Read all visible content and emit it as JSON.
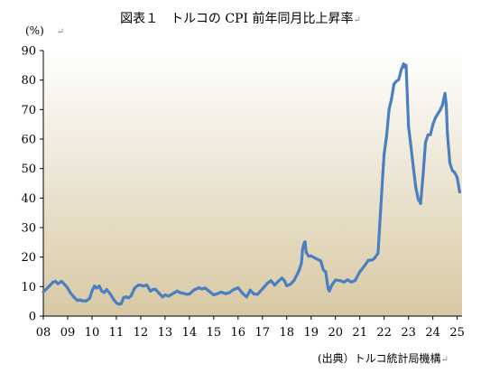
{
  "title": "図表１　トルコの CPI 前年同月比上昇率",
  "unit_label": "(%)",
  "source_label": "(出典）トルコ統計局機構",
  "return_mark": "↵",
  "colors": {
    "line": "#4a7fc1",
    "plot_top": "#ffffff",
    "plot_bottom": "#d8c9a4"
  },
  "chart_data": {
    "type": "line",
    "title": "図表１　トルコの CPI 前年同月比上昇率",
    "xlabel": "",
    "ylabel": "(%)",
    "ylim": [
      0,
      90
    ],
    "yticks": [
      0,
      10,
      20,
      30,
      40,
      50,
      60,
      70,
      80,
      90
    ],
    "xlim": [
      2008,
      2025.2
    ],
    "xticks": [
      {
        "pos": 2008,
        "label": "08"
      },
      {
        "pos": 2009,
        "label": "09"
      },
      {
        "pos": 2010,
        "label": "10"
      },
      {
        "pos": 2011,
        "label": "11"
      },
      {
        "pos": 2012,
        "label": "12"
      },
      {
        "pos": 2013,
        "label": "13"
      },
      {
        "pos": 2014,
        "label": "14"
      },
      {
        "pos": 2015,
        "label": "15"
      },
      {
        "pos": 2016,
        "label": "16"
      },
      {
        "pos": 2017,
        "label": "17"
      },
      {
        "pos": 2018,
        "label": "18"
      },
      {
        "pos": 2019,
        "label": "19"
      },
      {
        "pos": 2020,
        "label": "20"
      },
      {
        "pos": 2021,
        "label": "21"
      },
      {
        "pos": 2022,
        "label": "22"
      },
      {
        "pos": 2023,
        "label": "23"
      },
      {
        "pos": 2024,
        "label": "24"
      },
      {
        "pos": 2025,
        "label": "25"
      }
    ],
    "grid": false,
    "series": [
      {
        "name": "",
        "x": [
          2008.0,
          2008.1,
          2008.25,
          2008.4,
          2008.5,
          2008.6,
          2008.75,
          2008.9,
          2009.0,
          2009.1,
          2009.25,
          2009.4,
          2009.5,
          2009.6,
          2009.75,
          2009.9,
          2010.0,
          2010.1,
          2010.2,
          2010.3,
          2010.4,
          2010.5,
          2010.6,
          2010.75,
          2010.9,
          2011.0,
          2011.1,
          2011.2,
          2011.3,
          2011.4,
          2011.5,
          2011.6,
          2011.75,
          2011.9,
          2012.0,
          2012.1,
          2012.25,
          2012.4,
          2012.5,
          2012.6,
          2012.75,
          2012.9,
          2013.0,
          2013.15,
          2013.3,
          2013.5,
          2013.6,
          2013.75,
          2013.9,
          2014.0,
          2014.2,
          2014.4,
          2014.5,
          2014.65,
          2014.8,
          2015.0,
          2015.15,
          2015.3,
          2015.5,
          2015.65,
          2015.8,
          2016.0,
          2016.2,
          2016.35,
          2016.5,
          2016.65,
          2016.8,
          2017.0,
          2017.2,
          2017.35,
          2017.5,
          2017.65,
          2017.8,
          2017.9,
          2018.0,
          2018.15,
          2018.3,
          2018.5,
          2018.6,
          2018.65,
          2018.7,
          2018.75,
          2018.8,
          2018.9,
          2019.0,
          2019.2,
          2019.4,
          2019.5,
          2019.6,
          2019.7,
          2019.75,
          2019.85,
          2020.0,
          2020.2,
          2020.35,
          2020.5,
          2020.65,
          2020.8,
          2021.0,
          2021.2,
          2021.35,
          2021.5,
          2021.6,
          2021.75,
          2021.85,
          2021.95,
          2022.0,
          2022.1,
          2022.2,
          2022.3,
          2022.4,
          2022.5,
          2022.6,
          2022.7,
          2022.8,
          2022.85,
          2022.9,
          2023.0,
          2023.1,
          2023.2,
          2023.3,
          2023.4,
          2023.5,
          2023.6,
          2023.7,
          2023.8,
          2023.9,
          2024.0,
          2024.1,
          2024.2,
          2024.3,
          2024.4,
          2024.5,
          2024.55,
          2024.6,
          2024.7,
          2024.8,
          2024.9,
          2025.0,
          2025.1
        ],
        "values": [
          8.2,
          9.0,
          10.2,
          11.5,
          11.8,
          11.0,
          11.8,
          10.5,
          9.5,
          8.0,
          6.5,
          5.3,
          5.5,
          5.2,
          5.1,
          6.0,
          8.5,
          10.2,
          9.5,
          10.2,
          8.5,
          8.0,
          9.0,
          7.5,
          5.5,
          4.5,
          4.0,
          4.2,
          6.3,
          6.5,
          6.2,
          6.8,
          9.5,
          10.5,
          10.5,
          10.2,
          10.5,
          8.5,
          9.0,
          9.1,
          7.8,
          6.5,
          7.2,
          6.8,
          7.5,
          8.5,
          8.0,
          7.7,
          7.4,
          7.5,
          8.9,
          9.6,
          9.2,
          9.5,
          8.5,
          7.2,
          7.6,
          8.1,
          7.6,
          8.0,
          8.9,
          9.6,
          7.6,
          6.5,
          8.8,
          7.5,
          7.4,
          9.2,
          11.1,
          12.0,
          10.5,
          11.8,
          12.9,
          12.0,
          10.3,
          10.8,
          12.1,
          15.4,
          17.9,
          22.5,
          24.5,
          25.2,
          21.6,
          20.3,
          20.4,
          19.5,
          18.7,
          15.7,
          15.0,
          9.3,
          8.5,
          10.5,
          12.2,
          12.0,
          11.5,
          12.3,
          11.5,
          12.0,
          15.0,
          17.1,
          18.9,
          19.0,
          19.6,
          21.3,
          35.0,
          48.7,
          55.0,
          61.1,
          70.0,
          73.5,
          78.6,
          79.6,
          80.2,
          83.5,
          85.5,
          84.4,
          85.0,
          64.3,
          57.7,
          50.5,
          43.7,
          39.6,
          38.2,
          47.8,
          58.9,
          61.4,
          61.5,
          64.8,
          67.1,
          68.5,
          69.8,
          71.6,
          75.5,
          71.6,
          61.8,
          51.9,
          49.4,
          48.6,
          47.0,
          42.1
        ]
      }
    ]
  }
}
